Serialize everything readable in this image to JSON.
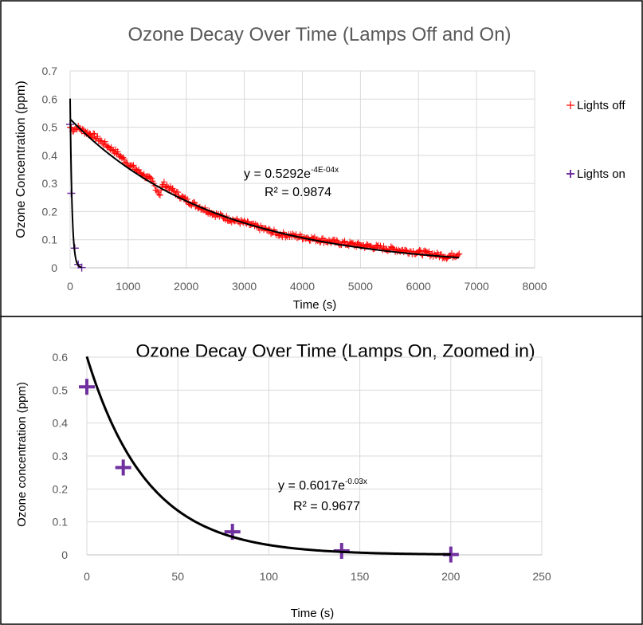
{
  "colors": {
    "lights_off": "#ff0000",
    "lights_on": "#7030a0",
    "fit": "#000000",
    "grid": "#d9d9d9",
    "text": "#595959",
    "frame": "#000000"
  },
  "chart_data": [
    {
      "type": "scatter",
      "title": "Ozone Decay Over Time (Lamps Off and On)",
      "xlabel": "Time (s)",
      "ylabel": "Ozone Concentration (ppm)",
      "xlim": [
        0,
        8000
      ],
      "ylim": [
        0,
        0.7
      ],
      "xticks": [
        "0",
        "1000",
        "2000",
        "3000",
        "4000",
        "5000",
        "6000",
        "7000",
        "8000"
      ],
      "yticks": [
        "0",
        "0.1",
        "0.2",
        "0.3",
        "0.4",
        "0.5",
        "0.6",
        "0.7"
      ],
      "grid": true,
      "legend_position": "right",
      "series": [
        {
          "name": "Lights off",
          "marker": "+",
          "color": "#ff0000",
          "x_range": [
            0,
            6700
          ],
          "fit": {
            "a": 0.5292,
            "b": -0.0004
          },
          "points": [
            [
              0,
              0.5
            ],
            [
              60,
              0.49
            ],
            [
              120,
              0.5
            ],
            [
              200,
              0.49
            ],
            [
              300,
              0.48
            ],
            [
              400,
              0.47
            ],
            [
              600,
              0.44
            ],
            [
              800,
              0.41
            ],
            [
              1000,
              0.37
            ],
            [
              1200,
              0.34
            ],
            [
              1400,
              0.31
            ],
            [
              1550,
              0.26
            ],
            [
              1600,
              0.3
            ],
            [
              1800,
              0.27
            ],
            [
              2000,
              0.24
            ],
            [
              2200,
              0.22
            ],
            [
              2500,
              0.19
            ],
            [
              2800,
              0.17
            ],
            [
              3000,
              0.16
            ],
            [
              3300,
              0.14
            ],
            [
              3600,
              0.12
            ],
            [
              4000,
              0.11
            ],
            [
              4300,
              0.1
            ],
            [
              4600,
              0.09
            ],
            [
              5000,
              0.08
            ],
            [
              5400,
              0.07
            ],
            [
              5800,
              0.06
            ],
            [
              6200,
              0.05
            ],
            [
              6500,
              0.04
            ],
            [
              6700,
              0.05
            ]
          ]
        },
        {
          "name": "Lights on",
          "marker": "+",
          "color": "#7030a0",
          "x_range": [
            0,
            200
          ],
          "fit": {
            "a": 0.6017,
            "b": -0.03
          },
          "points": [
            [
              0,
              0.51
            ],
            [
              20,
              0.265
            ],
            [
              80,
              0.07
            ],
            [
              140,
              0.012
            ],
            [
              200,
              0.001
            ]
          ]
        }
      ],
      "annotation": {
        "equation": "y = 0.5292e",
        "exponent": "-4E-04x",
        "r2": "R² = 0.9874"
      }
    },
    {
      "type": "scatter",
      "title": "Ozone Decay Over Time (Lamps On, Zoomed in)",
      "xlabel": "Time (s)",
      "ylabel": "Ozone concentration (ppm)",
      "xlim": [
        0,
        250
      ],
      "ylim": [
        0,
        0.6
      ],
      "xticks": [
        "0",
        "50",
        "100",
        "150",
        "200",
        "250"
      ],
      "yticks": [
        "0",
        "0.1",
        "0.2",
        "0.3",
        "0.4",
        "0.5",
        "0.6"
      ],
      "grid": true,
      "series": [
        {
          "marker": "+",
          "color": "#7030a0",
          "x_range": [
            0,
            200
          ],
          "fit": {
            "a": 0.6017,
            "b": -0.03
          },
          "points": [
            [
              0,
              0.51
            ],
            [
              20,
              0.265
            ],
            [
              80,
              0.07
            ],
            [
              140,
              0.012
            ],
            [
              200,
              0.001
            ]
          ]
        }
      ],
      "annotation": {
        "equation": "y = 0.6017e",
        "exponent": "-0.03x",
        "r2": "R² = 0.9677"
      }
    }
  ]
}
